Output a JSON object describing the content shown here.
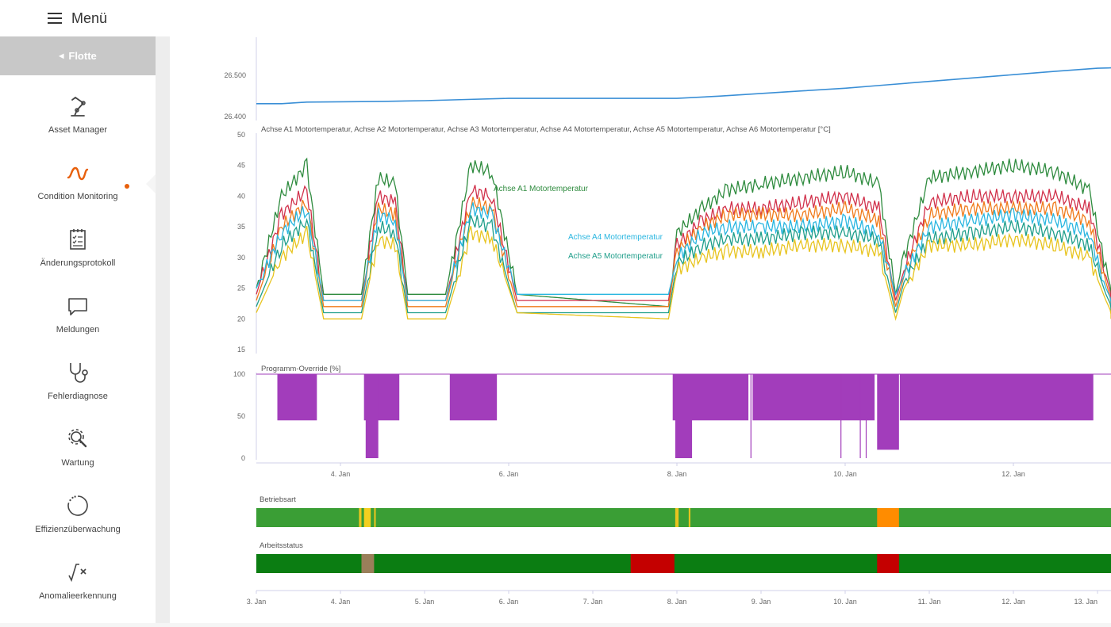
{
  "header": {
    "menu_label": "Menü",
    "menu_icon": "hamburger-icon"
  },
  "sidebar": {
    "back_label": "Flotte",
    "items": [
      {
        "id": "asset-manager",
        "label": "Asset Manager",
        "icon": "robot-arm-icon",
        "active": false
      },
      {
        "id": "condition-monitoring",
        "label": "Condition Monitoring",
        "icon": "wave-icon",
        "active": true
      },
      {
        "id": "aenderungsprotokoll",
        "label": "Änderungsprotokoll",
        "icon": "checklist-icon",
        "active": false
      },
      {
        "id": "meldungen",
        "label": "Meldungen",
        "icon": "speech-bubble-icon",
        "active": false
      },
      {
        "id": "fehlerdiagnose",
        "label": "Fehlerdiagnose",
        "icon": "stethoscope-icon",
        "active": false
      },
      {
        "id": "wartung",
        "label": "Wartung",
        "icon": "wrench-gear-icon",
        "active": false
      },
      {
        "id": "effizienzueberwachung",
        "label": "Effizienzüberwachung",
        "icon": "dotted-circle-icon",
        "active": false
      },
      {
        "id": "anomalieerkennung",
        "label": "Anomalieerkennung",
        "icon": "sqrt-x-icon",
        "active": false
      }
    ]
  },
  "chart_data": [
    {
      "type": "line",
      "y_ticks": [
        "26.500",
        "26.400"
      ],
      "ylim": [
        26400,
        26560
      ],
      "x_days": [
        3.0,
        3.3,
        3.6,
        4.0,
        4.5,
        5.0,
        5.5,
        6.0,
        6.5,
        7.0,
        7.5,
        8.0,
        8.5,
        9.0,
        9.5,
        10.0,
        10.5,
        11.0,
        11.5,
        12.0,
        12.5,
        13.0,
        13.2
      ],
      "values": [
        26430,
        26430,
        26434,
        26435,
        26436,
        26438,
        26441,
        26444,
        26444,
        26444,
        26444,
        26444,
        26450,
        26457,
        26464,
        26471,
        26480,
        26489,
        26498,
        26507,
        26516,
        26524,
        26525
      ],
      "color": "#3a8fd6"
    },
    {
      "type": "line",
      "title": "Achse A1 Motortemperatur, Achse A2 Motortemperatur, Achse A3 Motortemperatur, Achse A4 Motortemperatur, Achse A5 Motortemperatur, Achse A6 Motortemperatur [°C]",
      "ylim": [
        15,
        50
      ],
      "y_ticks": [
        "50",
        "45",
        "40",
        "35",
        "30",
        "25",
        "20",
        "15"
      ],
      "x_days": [
        3.0,
        3.3,
        3.6,
        3.8,
        4.25,
        4.45,
        4.65,
        4.8,
        5.25,
        5.55,
        5.8,
        6.1,
        7.9,
        8.0,
        8.3,
        8.6,
        9.0,
        9.5,
        10.0,
        10.4,
        10.6,
        10.7,
        11.0,
        11.5,
        12.0,
        12.5,
        12.9,
        13.1,
        13.2
      ],
      "series": [
        {
          "name": "Achse A1 Motortemperatur",
          "color": "#2e8b3e",
          "values": [
            25,
            40,
            45,
            24,
            24,
            43,
            42,
            24,
            24,
            45,
            44,
            24,
            22,
            34,
            38,
            41,
            42,
            43,
            44,
            42,
            24,
            30,
            43,
            44,
            45,
            44,
            41,
            28,
            23
          ]
        },
        {
          "name": "",
          "color": "#d1314b",
          "values": [
            24,
            37,
            41,
            23,
            23,
            40,
            39,
            23,
            23,
            41,
            40,
            23,
            23,
            32,
            36,
            38,
            38,
            39,
            40,
            38,
            23,
            28,
            39,
            40,
            40,
            40,
            38,
            27,
            22
          ]
        },
        {
          "name": "",
          "color": "#f07a1a",
          "values": [
            23,
            35,
            39,
            22,
            22,
            38,
            37,
            22,
            22,
            39,
            38,
            22,
            22,
            31,
            35,
            37,
            37,
            37,
            38,
            36,
            22,
            27,
            37,
            38,
            38,
            38,
            36,
            26,
            21
          ]
        },
        {
          "name": "Achse A4 Motortemperatur",
          "color": "#29b6e0",
          "values": [
            25,
            34,
            38,
            23,
            23,
            37,
            36,
            23,
            23,
            38,
            37,
            24,
            24,
            30,
            34,
            35,
            35,
            35,
            36,
            34,
            24,
            27,
            35,
            36,
            37,
            36,
            34,
            25,
            22
          ]
        },
        {
          "name": "Achse A5 Motortemperatur",
          "color": "#1f9e8a",
          "values": [
            22,
            32,
            36,
            21,
            21,
            35,
            34,
            21,
            21,
            36,
            35,
            21,
            21,
            29,
            32,
            33,
            33,
            34,
            34,
            33,
            21,
            26,
            33,
            34,
            35,
            34,
            32,
            24,
            21
          ]
        },
        {
          "name": "",
          "color": "#e8c41f",
          "values": [
            21,
            30,
            34,
            20,
            20,
            33,
            32,
            20,
            20,
            34,
            33,
            21,
            20,
            28,
            30,
            31,
            31,
            32,
            32,
            31,
            20,
            25,
            32,
            32,
            33,
            32,
            30,
            23,
            20
          ]
        }
      ]
    },
    {
      "type": "bar",
      "title": "Programm-Override [%]",
      "ylim": [
        0,
        100
      ],
      "y_ticks": [
        "100",
        "50",
        "0"
      ],
      "color": "#a23dbb",
      "baseline": 100,
      "segments": [
        {
          "start": 3.25,
          "end": 3.72,
          "low": 45
        },
        {
          "start": 4.28,
          "end": 4.7,
          "low": 45
        },
        {
          "start": 4.3,
          "end": 4.45,
          "low": 0
        },
        {
          "start": 5.3,
          "end": 5.86,
          "low": 45
        },
        {
          "start": 7.95,
          "end": 8.85,
          "low": 45
        },
        {
          "start": 7.98,
          "end": 8.18,
          "low": 0
        },
        {
          "start": 8.9,
          "end": 10.35,
          "low": 45
        },
        {
          "start": 10.38,
          "end": 10.64,
          "low": 10
        },
        {
          "start": 10.65,
          "end": 12.95,
          "low": 45
        }
      ],
      "dips": [
        8.88,
        9.95,
        10.18,
        10.25
      ]
    },
    {
      "type": "heatmap",
      "title": "Betriebsart",
      "base_color": "#3a9e35",
      "segments": [
        {
          "start": 4.22,
          "end": 4.25,
          "color": "#e8c41f"
        },
        {
          "start": 4.28,
          "end": 4.36,
          "color": "#f3cf1f"
        },
        {
          "start": 4.4,
          "end": 4.42,
          "color": "#e8c41f"
        },
        {
          "start": 7.98,
          "end": 8.02,
          "color": "#e8c41f"
        },
        {
          "start": 8.14,
          "end": 8.16,
          "color": "#e8c41f"
        },
        {
          "start": 10.38,
          "end": 10.64,
          "color": "#ff8c00"
        }
      ]
    },
    {
      "type": "heatmap",
      "title": "Arbeitsstatus",
      "base_color": "#0b7d12",
      "segments": [
        {
          "start": 4.25,
          "end": 4.4,
          "color": "#9a7f5a"
        },
        {
          "start": 7.45,
          "end": 7.97,
          "color": "#c40000"
        },
        {
          "start": 10.38,
          "end": 10.64,
          "color": "#c40000"
        }
      ],
      "x_ticks": [
        "3. Jan",
        "4. Jan",
        "5. Jan",
        "6. Jan",
        "7. Jan",
        "8. Jan",
        "9. Jan",
        "10. Jan",
        "11. Jan",
        "12. Jan",
        "13. Jan"
      ],
      "x_tick_days": [
        3,
        4,
        5,
        6,
        7,
        8,
        9,
        10,
        11,
        12,
        13
      ]
    }
  ],
  "temp_panel_x_ticks": [
    "4. Jan",
    "6. Jan",
    "8. Jan",
    "10. Jan",
    "12. Jan"
  ],
  "temp_panel_x_tick_days": [
    4,
    6,
    8,
    10,
    12
  ]
}
